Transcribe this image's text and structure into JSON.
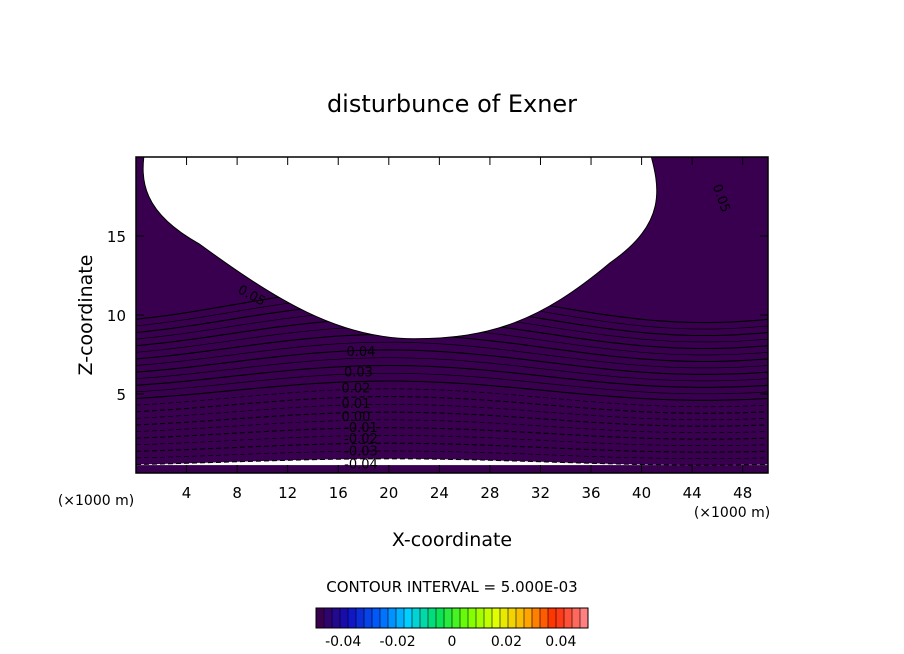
{
  "chart_data": {
    "type": "heatmap",
    "title": "disturbunce of Exner",
    "xlabel": "X-coordinate",
    "ylabel": "Z-coordinate",
    "x_unit": "(×1000 m)",
    "y_unit": "(×1000 m)",
    "xlim": [
      0,
      50
    ],
    "ylim": [
      0,
      20
    ],
    "x_ticks": [
      "4",
      "8",
      "12",
      "16",
      "20",
      "24",
      "28",
      "32",
      "36",
      "40",
      "44",
      "48"
    ],
    "y_ticks": [
      "5",
      "10",
      "15"
    ],
    "contour_interval_text": "CONTOUR INTERVAL = 5.000E-03",
    "colorbar": {
      "range": [
        -0.05,
        0.05
      ],
      "tick_labels": [
        "-0.04",
        "-0.02",
        "0",
        "0.02",
        "0.04"
      ],
      "colors": [
        "#3a0050",
        "#1010c0",
        "#0060ff",
        "#00d0ff",
        "#00e060",
        "#70ff00",
        "#e0ff00",
        "#ffb000",
        "#ff2a00",
        "#ff8080"
      ]
    },
    "contour_labels": [
      {
        "text": "0.05",
        "x": 46,
        "z": 17.3
      },
      {
        "text": "0.05",
        "x": 9,
        "z": 11.0
      },
      {
        "text": "0.04",
        "x": 17.8,
        "z": 7.4
      },
      {
        "text": "0.03",
        "x": 17.6,
        "z": 6.1
      },
      {
        "text": "0.02",
        "x": 17.4,
        "z": 5.1
      },
      {
        "text": "0.01",
        "x": 17.4,
        "z": 4.1
      },
      {
        "text": "0.00",
        "x": 17.4,
        "z": 3.3
      },
      {
        "text": "-0.01",
        "x": 17.8,
        "z": 2.6
      },
      {
        "text": "-0.02",
        "x": 17.8,
        "z": 1.9
      },
      {
        "text": "-0.03",
        "x": 17.8,
        "z": 1.1
      },
      {
        "text": "-0.04",
        "x": 17.8,
        "z": 0.3
      }
    ]
  }
}
